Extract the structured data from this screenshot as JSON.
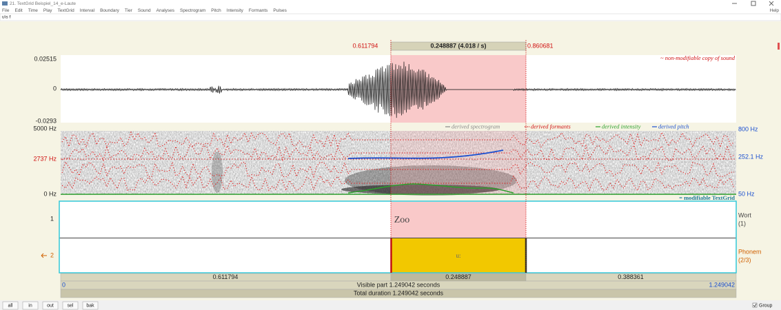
{
  "window": {
    "title": "21. TextGrid Beispiel_14_e-Laute"
  },
  "menu": [
    "File",
    "Edit",
    "Time",
    "Play",
    "TextGrid",
    "Interval",
    "Boundary",
    "Tier",
    "Sound",
    "Analyses",
    "Spectrogram",
    "Pitch",
    "Intensity",
    "Formants",
    "Pulses",
    "Help"
  ],
  "toolbar_text": "u\\s f",
  "selection": {
    "start": "0.611794",
    "length": "0.248887 (4.018 / s)",
    "end": "0.860681"
  },
  "sound": {
    "label": "~ non-modifiable copy of sound",
    "max": "0.02515",
    "zero": "0",
    "min": "-0.0293"
  },
  "spectrogram": {
    "top": "5000 Hz",
    "cursor": "2737 Hz",
    "bottom": "0 Hz",
    "pitch_top": "800 Hz",
    "pitch_cursor": "252.1 Hz",
    "pitch_bottom": "50 Hz",
    "legend": [
      "derived spectrogram",
      "derived formants",
      "derived intensity",
      "derived pitch"
    ]
  },
  "textgrid": {
    "label": "= modifiable TextGrid",
    "tiers": [
      {
        "number": "1",
        "name": "Wort",
        "count": "(1)",
        "text": "Zoo"
      },
      {
        "number": "2",
        "name": "Phonem",
        "count": "(2/3)",
        "text": "u:"
      }
    ]
  },
  "durations": [
    "0.611794",
    "0.248887",
    "0.388361"
  ],
  "visible": {
    "start": "0",
    "label": "Visible part 1.249042 seconds",
    "end": "1.249042"
  },
  "total": "Total duration 1.249042 seconds",
  "buttons": [
    "all",
    "in",
    "out",
    "sel",
    "bak"
  ],
  "group": "Group"
}
